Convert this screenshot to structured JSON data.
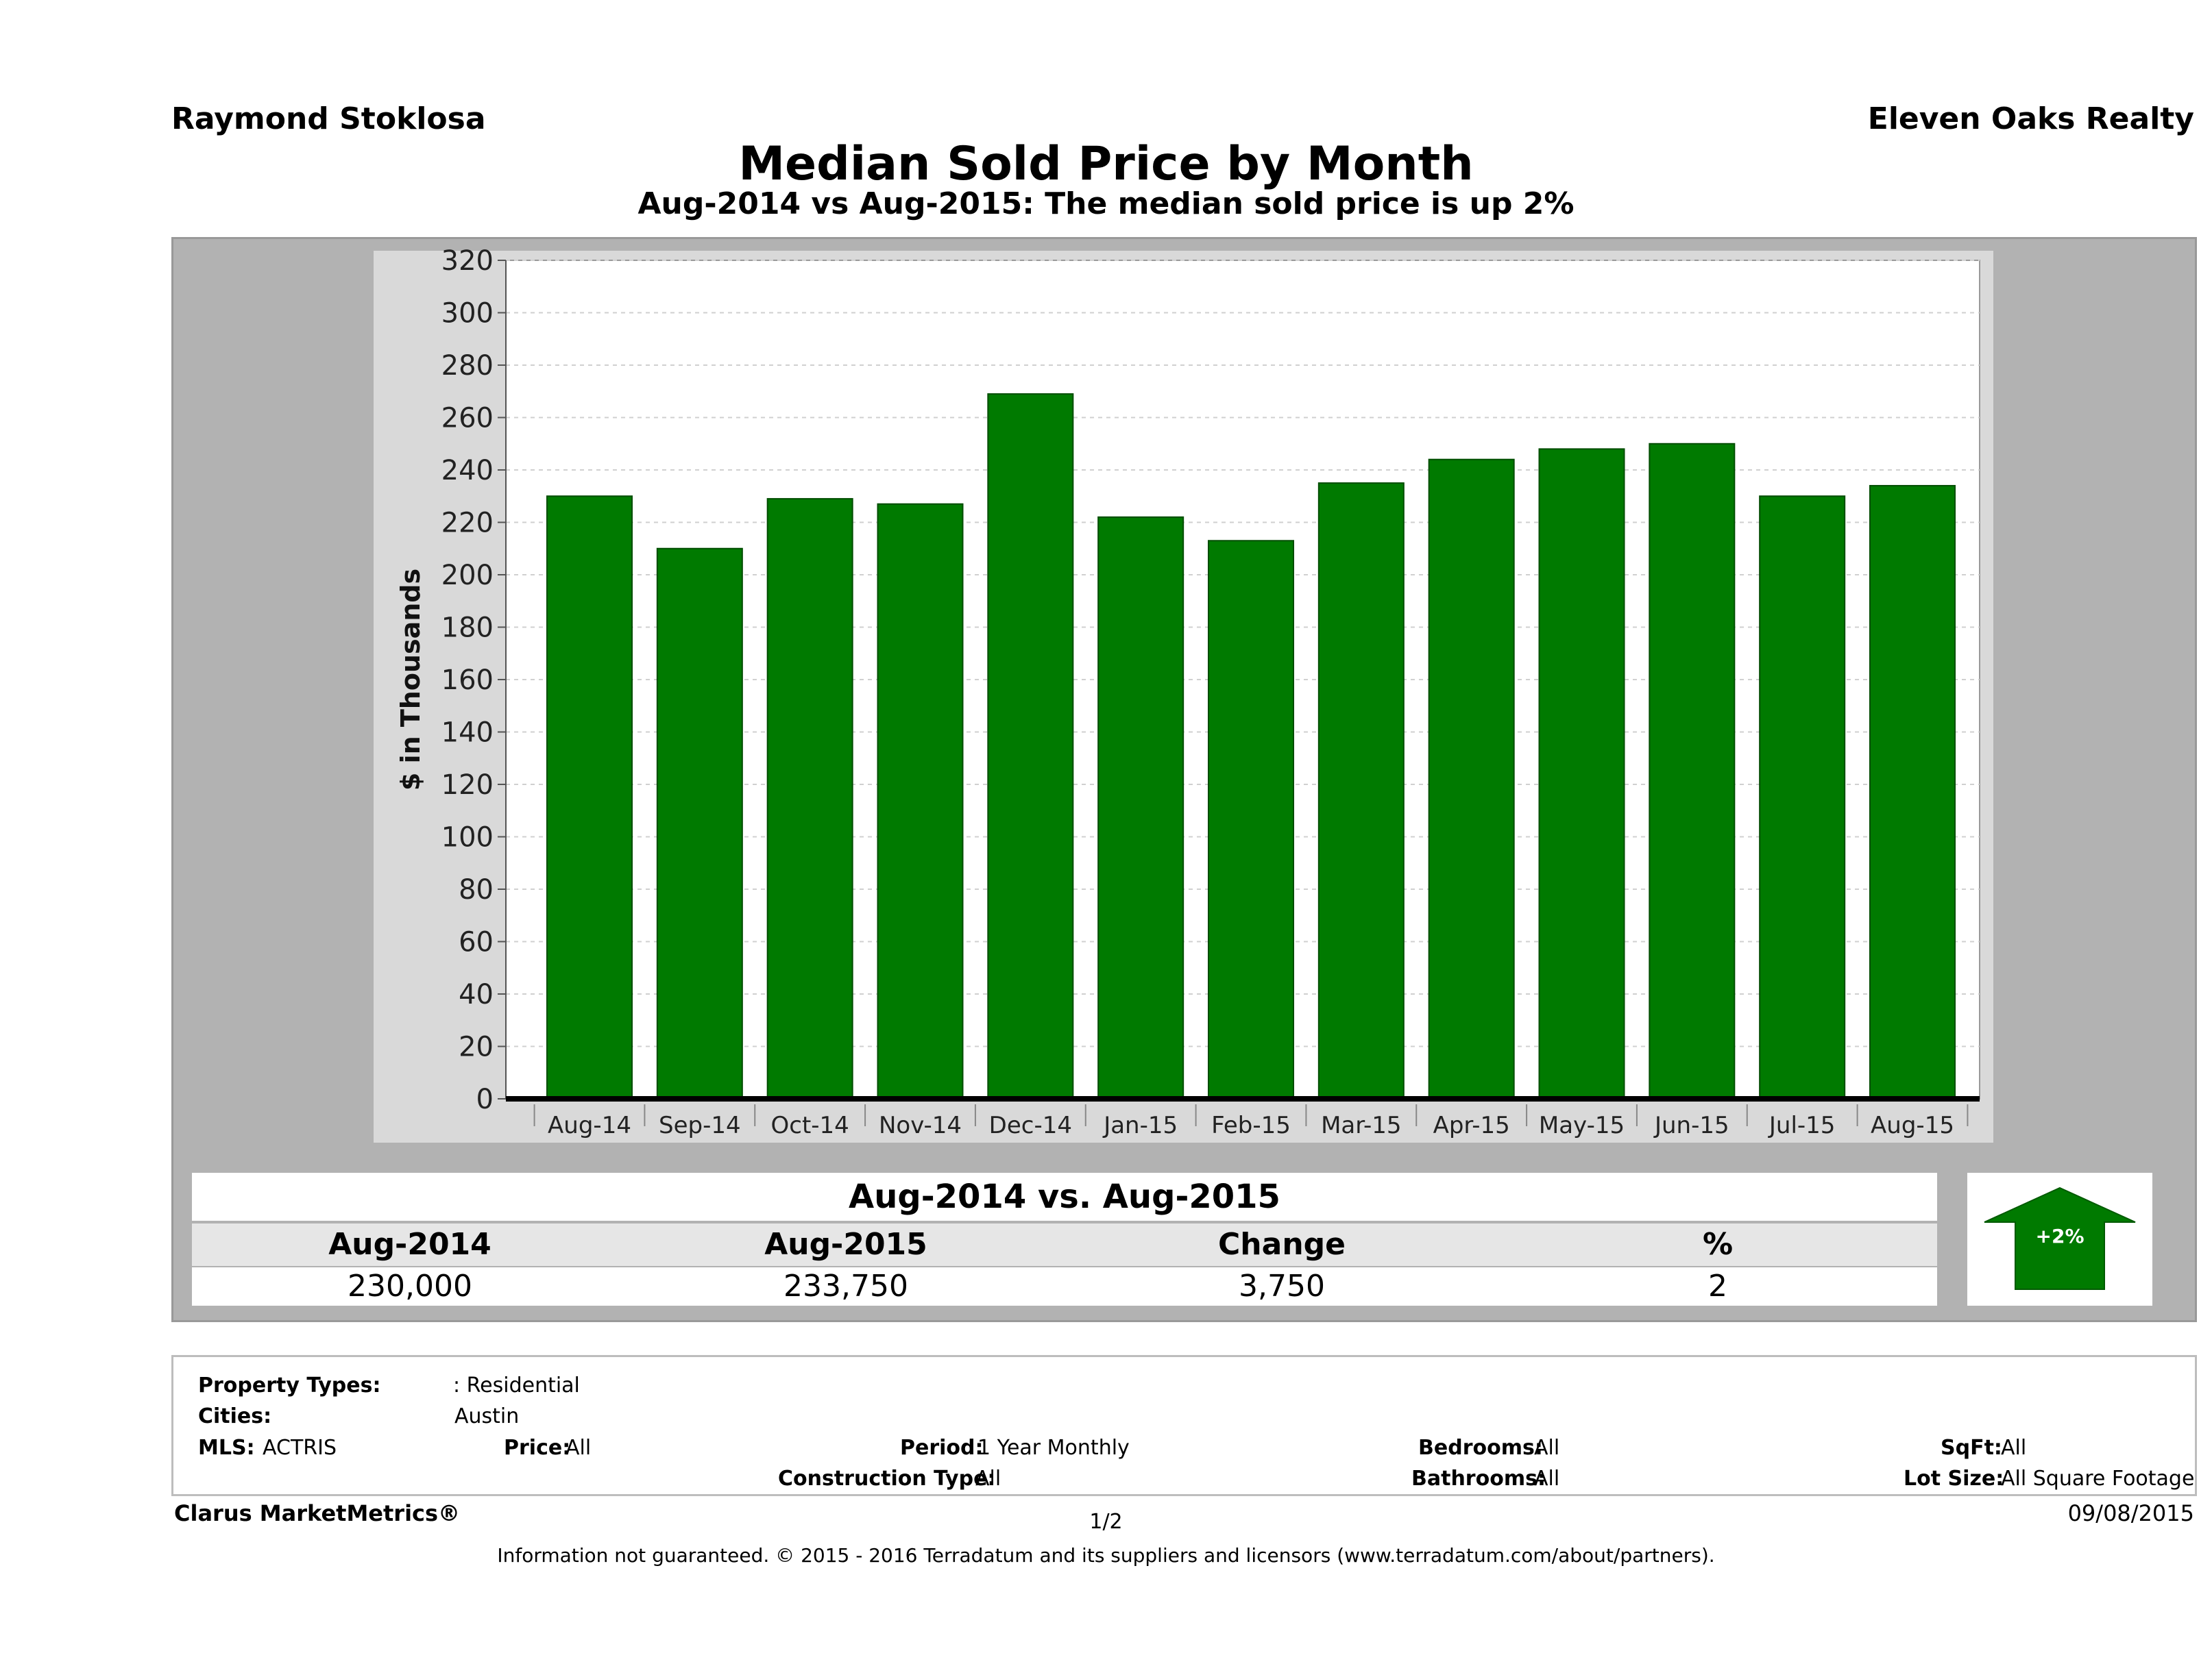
{
  "header": {
    "agent": "Raymond Stoklosa",
    "brokerage": "Eleven Oaks Realty"
  },
  "chart_data": {
    "type": "bar",
    "title": "Median Sold Price by Month",
    "subtitle": "Aug-2014 vs Aug-2015: The median sold price is up 2%",
    "ylabel": "$ in Thousands",
    "xlabel": "",
    "ylim": [
      0,
      320
    ],
    "yticks": [
      "0",
      "20",
      "40",
      "60",
      "80",
      "100",
      "120",
      "140",
      "160",
      "180",
      "200",
      "220",
      "240",
      "260",
      "280",
      "300",
      "320"
    ],
    "categories": [
      "Aug-14",
      "Sep-14",
      "Oct-14",
      "Nov-14",
      "Dec-14",
      "Jan-15",
      "Feb-15",
      "Mar-15",
      "Apr-15",
      "May-15",
      "Jun-15",
      "Jul-15",
      "Aug-15"
    ],
    "values": [
      230,
      210,
      229,
      227,
      269,
      222,
      213,
      235,
      244,
      248,
      250,
      230,
      234
    ],
    "bar_color": "#007a00",
    "grid": true
  },
  "comparison": {
    "title": "Aug-2014 vs. Aug-2015",
    "headers": [
      "Aug-2014",
      "Aug-2015",
      "Change",
      "%"
    ],
    "values": [
      "230,000",
      "233,750",
      "3,750",
      "2"
    ],
    "badge": "+2%",
    "badge_icon": "up-arrow-icon",
    "badge_color": "#007a00"
  },
  "filters": {
    "property_types_label": "Property Types:",
    "property_types_value": ": Residential",
    "cities_label": "Cities:",
    "cities_value": "Austin",
    "mls_label": "MLS:",
    "mls_value": "ACTRIS",
    "price_label": "Price:",
    "price_value": "All",
    "period_label": "Period:",
    "period_value": "1 Year Monthly",
    "construction_label": "Construction Type:",
    "construction_value": "All",
    "bedrooms_label": "Bedrooms:",
    "bedrooms_value": "All",
    "bathrooms_label": "Bathrooms:",
    "bathrooms_value": "All",
    "sqft_label": "SqFt:",
    "sqft_value": "All",
    "lot_label": "Lot Size:",
    "lot_value": "All Square Footage"
  },
  "footer": {
    "brand": "Clarus MarketMetrics®",
    "page": "1/2",
    "date": "09/08/2015",
    "legal": "Information not guaranteed. © 2015 - 2016 Terradatum and its suppliers and licensors (www.terradatum.com/about/partners)."
  }
}
